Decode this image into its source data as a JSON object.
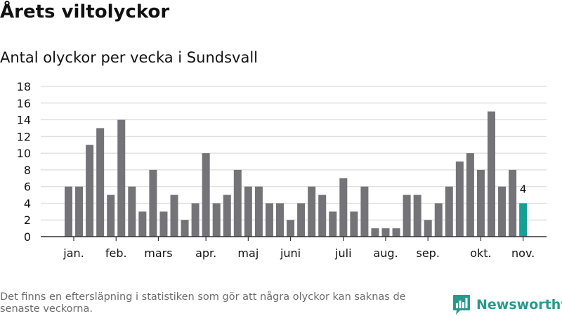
{
  "header": {
    "title": "Årets viltolyckor",
    "subtitle": "Antal olyckor per vecka i Sundsvall"
  },
  "footer": {
    "note": "Det finns en eftersläpning i statistiken som gör att några olyckor kan saknas de senaste veckorna.",
    "brand": "Newsworthy"
  },
  "colors": {
    "bar": "#747378",
    "highlight": "#13a095",
    "grid": "#dcdcdc",
    "axis": "#333333",
    "brand": "#279a8d"
  },
  "chart_data": {
    "type": "bar",
    "title": "Antal olyckor per vecka i Sundsvall",
    "xlabel": "",
    "ylabel": "",
    "ylim": [
      0,
      18
    ],
    "yticks": [
      0,
      2,
      4,
      6,
      8,
      10,
      12,
      14,
      16,
      18
    ],
    "grid": true,
    "values": [
      6,
      6,
      11,
      13,
      5,
      14,
      6,
      3,
      8,
      3,
      5,
      2,
      4,
      10,
      4,
      5,
      8,
      6,
      6,
      4,
      4,
      2,
      4,
      6,
      5,
      3,
      7,
      3,
      6,
      1,
      1,
      1,
      5,
      5,
      2,
      4,
      6,
      9,
      10,
      8,
      15,
      6,
      8,
      4
    ],
    "highlight_index": 43,
    "highlight_label": "4",
    "month_labels": [
      {
        "label": "jan.",
        "bar": 0.5
      },
      {
        "label": "feb.",
        "bar": 4.5
      },
      {
        "label": "mars",
        "bar": 8.5
      },
      {
        "label": "apr.",
        "bar": 13.0
      },
      {
        "label": "maj",
        "bar": 17.0
      },
      {
        "label": "juni",
        "bar": 21.0
      },
      {
        "label": "juli",
        "bar": 26.0
      },
      {
        "label": "aug.",
        "bar": 30.0
      },
      {
        "label": "sep.",
        "bar": 34.0
      },
      {
        "label": "okt.",
        "bar": 39.0
      },
      {
        "label": "nov.",
        "bar": 43.0
      }
    ]
  }
}
